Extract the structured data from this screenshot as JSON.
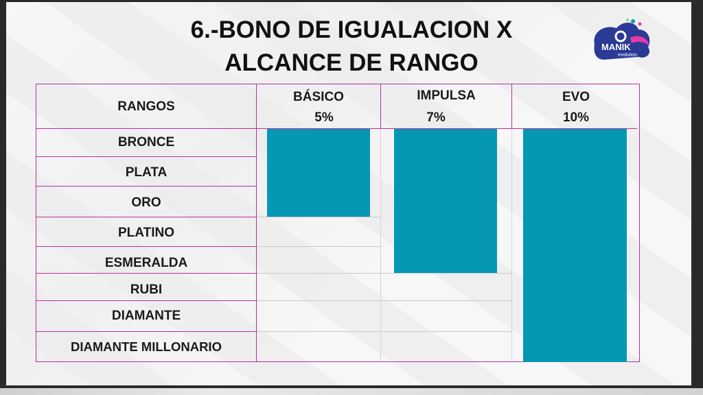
{
  "title": {
    "line1": "6.-BONO DE IGUALACION X",
    "line2": "ALCANCE DE RANGO"
  },
  "logo": {
    "text": "MANIK",
    "subtext": "evolution",
    "colors": {
      "primary": "#2b3a96",
      "accent": "#e73aa8",
      "teal": "#0498b4"
    }
  },
  "table": {
    "header": {
      "rank_col": "RANGOS",
      "plans": [
        {
          "name": "BÁSICO",
          "percent": "5%"
        },
        {
          "name": "IMPULSA",
          "percent": "7%"
        },
        {
          "name": "EVO",
          "percent": "10%"
        }
      ]
    },
    "ranks": [
      "BRONCE",
      "PLATA",
      "ORO",
      "PLATINO",
      "ESMERALDA",
      "RUBI",
      "DIAMANTE",
      "DIAMANTE MILLONARIO"
    ],
    "reach": [
      {
        "plan": "BÁSICO",
        "from": "BRONCE",
        "to": "ORO",
        "ranks_covered": 3
      },
      {
        "plan": "IMPULSA",
        "from": "BRONCE",
        "to": "ESMERALDA",
        "ranks_covered": 5
      },
      {
        "plan": "EVO",
        "from": "BRONCE",
        "to": "DIAMANTE MILLONARIO",
        "ranks_covered": 8
      }
    ],
    "colors": {
      "bar": "#0498b4",
      "border": "#b82fa0"
    }
  }
}
